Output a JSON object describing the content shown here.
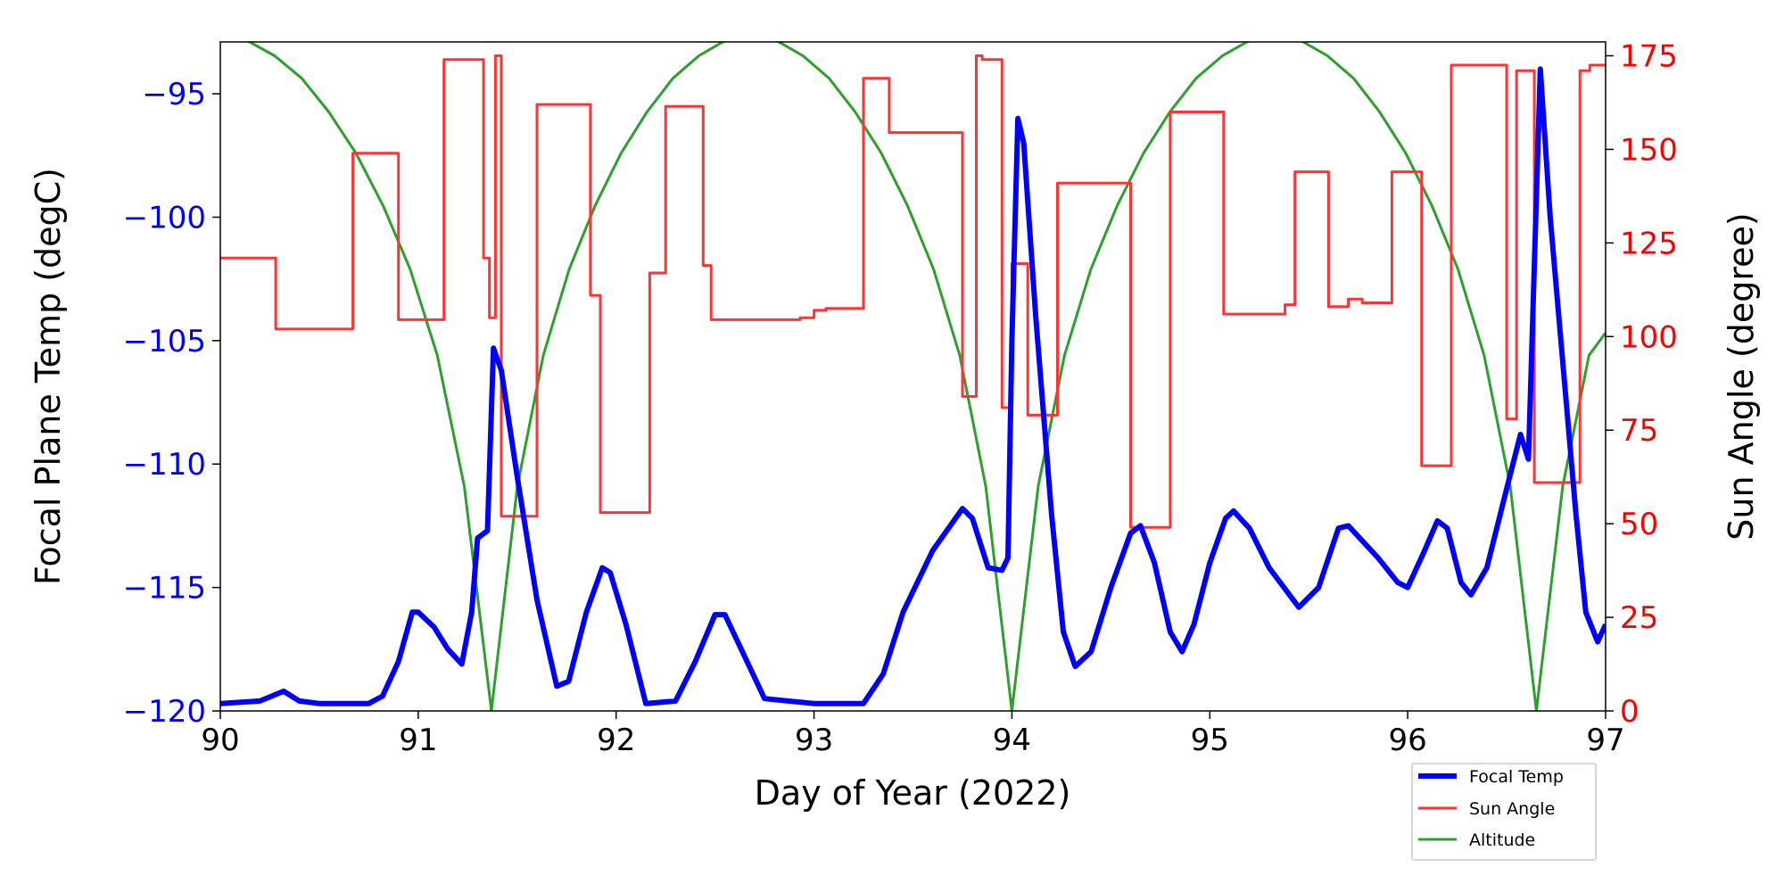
{
  "chart_data": {
    "type": "line",
    "xlabel": "Day of Year (2022)",
    "ylabel_left": "Focal Plane Temp (degC)",
    "ylabel_right": "Sun Angle (degree)",
    "xlim": [
      90,
      97
    ],
    "ylim_left": [
      -120,
      -92.9
    ],
    "ylim_right": [
      0,
      178.7
    ],
    "x_ticks": [
      90,
      91,
      92,
      93,
      94,
      95,
      96,
      97
    ],
    "y_ticks_left": [
      -120,
      -115,
      -110,
      -105,
      -100,
      -95
    ],
    "y_ticks_left_labels": [
      "−120",
      "−115",
      "−110",
      "−105",
      "−100",
      "−95"
    ],
    "y_ticks_right": [
      0,
      25,
      50,
      75,
      100,
      125,
      150,
      175
    ],
    "grid": false,
    "legend_position": "bottom-right-outside",
    "colors": {
      "left_axis": "#0000ff",
      "right_axis": "#ff0000",
      "focal": "#0000ff",
      "sun": "#ff3333",
      "altitude": "#2ca02c"
    },
    "series": [
      {
        "name": "Focal Temp",
        "axis": "left",
        "x": [
          90.0,
          90.2,
          90.32,
          90.4,
          90.5,
          90.75,
          90.82,
          90.9,
          90.97,
          91.0,
          91.08,
          91.15,
          91.22,
          91.27,
          91.3,
          91.35,
          91.38,
          91.42,
          91.5,
          91.6,
          91.7,
          91.76,
          91.85,
          91.93,
          91.97,
          92.05,
          92.15,
          92.3,
          92.4,
          92.5,
          92.55,
          92.65,
          92.75,
          93.0,
          93.25,
          93.35,
          93.45,
          93.6,
          93.75,
          93.8,
          93.88,
          93.95,
          93.98,
          94.0,
          94.03,
          94.06,
          94.12,
          94.2,
          94.26,
          94.32,
          94.4,
          94.5,
          94.6,
          94.65,
          94.72,
          94.8,
          94.86,
          94.92,
          95.0,
          95.08,
          95.12,
          95.2,
          95.3,
          95.45,
          95.55,
          95.65,
          95.7,
          95.85,
          95.95,
          96.0,
          96.08,
          96.15,
          96.2,
          96.27,
          96.32,
          96.4,
          96.5,
          96.57,
          96.61,
          96.67,
          96.72,
          96.85,
          96.9,
          96.96,
          97.0
        ],
        "y": [
          -119.7,
          -119.6,
          -119.2,
          -119.6,
          -119.7,
          -119.7,
          -119.4,
          -118.0,
          -116.0,
          -116.0,
          -116.6,
          -117.5,
          -118.1,
          -116.0,
          -113.0,
          -112.7,
          -105.3,
          -106.2,
          -110.5,
          -115.5,
          -119.0,
          -118.8,
          -116.0,
          -114.2,
          -114.4,
          -116.5,
          -119.7,
          -119.6,
          -118.0,
          -116.1,
          -116.1,
          -117.8,
          -119.5,
          -119.7,
          -119.7,
          -118.5,
          -116.0,
          -113.5,
          -111.8,
          -112.2,
          -114.2,
          -114.3,
          -113.8,
          -105.0,
          -96.0,
          -97.0,
          -104.0,
          -112.0,
          -116.8,
          -118.2,
          -117.6,
          -115.0,
          -112.8,
          -112.5,
          -114.0,
          -116.8,
          -117.6,
          -116.5,
          -114.0,
          -112.2,
          -111.9,
          -112.6,
          -114.2,
          -115.8,
          -115.0,
          -112.6,
          -112.5,
          -113.8,
          -114.8,
          -115.0,
          -113.6,
          -112.3,
          -112.6,
          -114.8,
          -115.3,
          -114.2,
          -111.0,
          -108.8,
          -109.8,
          -94.0,
          -100.0,
          -112.0,
          -116.0,
          -117.2,
          -116.5
        ]
      },
      {
        "name": "Sun Angle",
        "axis": "right",
        "step": "post",
        "x": [
          90.0,
          90.28,
          90.67,
          90.9,
          91.13,
          91.33,
          91.36,
          91.39,
          91.42,
          91.6,
          91.87,
          91.92,
          92.17,
          92.25,
          92.44,
          92.48,
          92.93,
          93.0,
          93.06,
          93.25,
          93.38,
          93.75,
          93.82,
          93.85,
          93.95,
          94.0,
          94.08,
          94.23,
          94.6,
          94.8,
          95.07,
          95.38,
          95.43,
          95.6,
          95.7,
          95.77,
          95.92,
          96.07,
          96.22,
          96.5,
          96.55,
          96.64,
          96.87,
          96.92,
          97.0
        ],
        "y": [
          121,
          102,
          149,
          104.5,
          174,
          121,
          105,
          175,
          52,
          162,
          111,
          53,
          117,
          161.5,
          119,
          104.5,
          105,
          107,
          107.5,
          169,
          154.5,
          84,
          175,
          174,
          81,
          119.5,
          79,
          141,
          49,
          160,
          106,
          108.5,
          144,
          108,
          110,
          109,
          144,
          65.5,
          172.5,
          78,
          171,
          61,
          171,
          172.5,
          172.5
        ]
      },
      {
        "name": "Altitude",
        "axis": "right",
        "x": [
          90.0,
          90.137,
          90.274,
          90.411,
          90.548,
          90.685,
          90.822,
          90.959,
          91.096,
          91.233,
          91.37,
          91.501,
          91.632,
          91.763,
          91.894,
          92.025,
          92.156,
          92.287,
          92.418,
          92.549,
          92.68,
          92.812,
          92.944,
          93.076,
          93.208,
          93.34,
          93.472,
          93.604,
          93.736,
          93.868,
          94.0,
          94.133,
          94.266,
          94.399,
          94.532,
          94.665,
          94.798,
          94.931,
          95.064,
          95.197,
          95.33,
          95.462,
          95.594,
          95.726,
          95.858,
          95.99,
          96.122,
          96.254,
          96.386,
          96.518,
          96.65,
          96.783,
          96.916,
          97.0
        ],
        "y": [
          180,
          179,
          175,
          169,
          160,
          149,
          135,
          118,
          95,
          60,
          0,
          60,
          95,
          118,
          135,
          149,
          160,
          169,
          175,
          179,
          180,
          179,
          175,
          169,
          160,
          149,
          135,
          118,
          95,
          60,
          0,
          60,
          95,
          118,
          135,
          149,
          160,
          169,
          175,
          179,
          180,
          179,
          175,
          169,
          160,
          149,
          135,
          118,
          95,
          60,
          0,
          60,
          95,
          101
        ]
      }
    ]
  }
}
